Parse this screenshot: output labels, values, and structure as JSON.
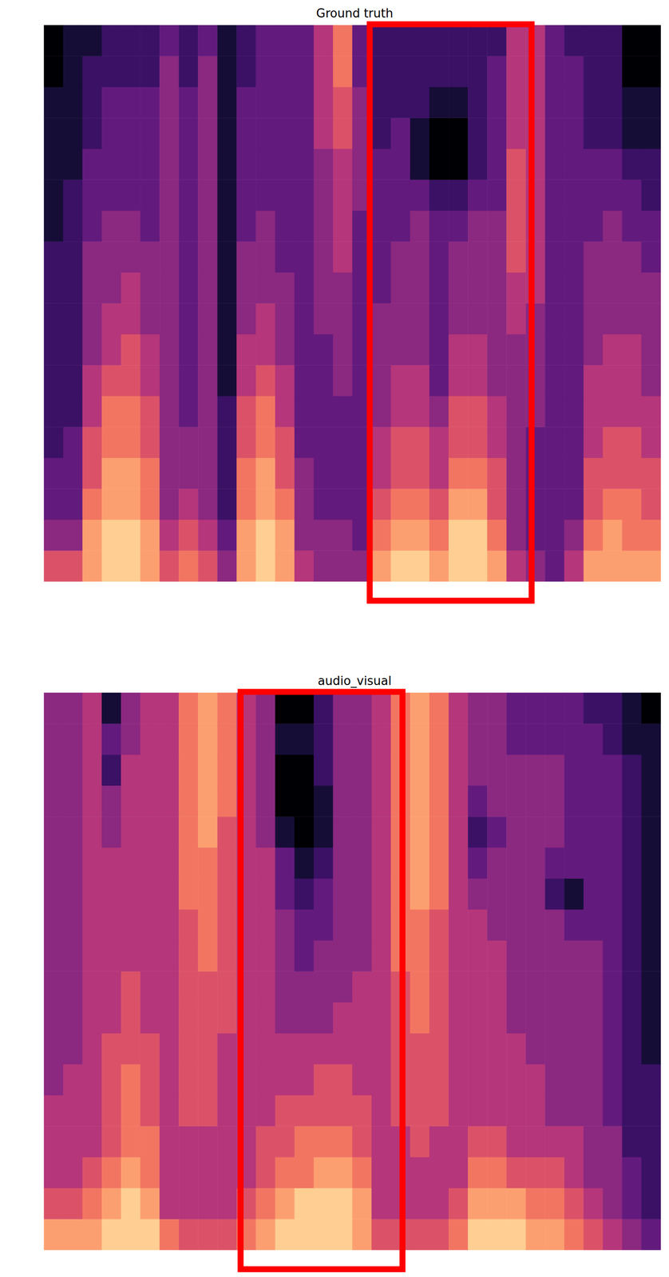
{
  "chart_data": [
    {
      "type": "heatmap",
      "title": "Ground truth",
      "clim": [
        0,
        10
      ],
      "tick_labels": false,
      "highlight": {
        "x": [
          16.9,
          25.3
        ],
        "color": "#ff0000"
      },
      "cells": [
        [
          6,
          4,
          3,
          3,
          2,
          2,
          2,
          2,
          2,
          2,
          2,
          1,
          1,
          1,
          1,
          1,
          0,
          0
        ],
        [
          6,
          4,
          3,
          3,
          3,
          2,
          2,
          2,
          2,
          2,
          2,
          2,
          2,
          1,
          1,
          1,
          1,
          1
        ],
        [
          8,
          8,
          7,
          6,
          6,
          5,
          5,
          4,
          4,
          4,
          4,
          3,
          3,
          3,
          2,
          2,
          2,
          1
        ],
        [
          9,
          9,
          8,
          8,
          7,
          7,
          6,
          5,
          5,
          4,
          4,
          4,
          3,
          3,
          3,
          3,
          2,
          2
        ],
        [
          9,
          9,
          8,
          8,
          7,
          7,
          6,
          6,
          5,
          5,
          4,
          4,
          3,
          3,
          3,
          3,
          2,
          2
        ],
        [
          8,
          8,
          7,
          7,
          6,
          6,
          5,
          5,
          4,
          4,
          4,
          3,
          3,
          3,
          3,
          3,
          2,
          2
        ],
        [
          6,
          5,
          4,
          4,
          4,
          4,
          4,
          4,
          4,
          4,
          4,
          4,
          4,
          4,
          4,
          4,
          4,
          3
        ],
        [
          7,
          6,
          5,
          4,
          4,
          3,
          3,
          3,
          3,
          3,
          3,
          3,
          3,
          3,
          3,
          3,
          2,
          2
        ],
        [
          6,
          5,
          4,
          4,
          4,
          4,
          4,
          4,
          4,
          4,
          4,
          4,
          4,
          4,
          4,
          4,
          4,
          3
        ],
        [
          4,
          3,
          2,
          2,
          2,
          2,
          1,
          1,
          1,
          1,
          1,
          1,
          1,
          1,
          1,
          1,
          1,
          1
        ],
        [
          8,
          8,
          7,
          7,
          6,
          6,
          5,
          5,
          4,
          4,
          4,
          3,
          3,
          3,
          3,
          3,
          2,
          2
        ],
        [
          9,
          9,
          8,
          8,
          7,
          7,
          6,
          5,
          5,
          4,
          4,
          4,
          3,
          3,
          3,
          3,
          3,
          3
        ],
        [
          8,
          8,
          7,
          6,
          6,
          5,
          5,
          4,
          4,
          4,
          3,
          3,
          3,
          3,
          3,
          3,
          3,
          3
        ],
        [
          5,
          4,
          4,
          4,
          3,
          3,
          3,
          3,
          3,
          3,
          3,
          3,
          3,
          3,
          3,
          3,
          3,
          3
        ],
        [
          4,
          4,
          3,
          3,
          3,
          3,
          3,
          3,
          4,
          4,
          4,
          4,
          4,
          4,
          5,
          5,
          5,
          5
        ],
        [
          4,
          4,
          3,
          3,
          3,
          3,
          4,
          4,
          4,
          4,
          5,
          5,
          5,
          5,
          6,
          6,
          7,
          7
        ],
        [
          4,
          3,
          3,
          3,
          3,
          3,
          3,
          3,
          3,
          3,
          3,
          3,
          4,
          4,
          4,
          4,
          3,
          3
        ],
        [
          8,
          7,
          6,
          5,
          5,
          4,
          4,
          4,
          4,
          3,
          3,
          3,
          3,
          3,
          2,
          2,
          2,
          2
        ],
        [
          9,
          8,
          7,
          6,
          6,
          5,
          5,
          4,
          4,
          4,
          4,
          3,
          3,
          3,
          3,
          2,
          2,
          2
        ],
        [
          9,
          8,
          7,
          6,
          6,
          5,
          5,
          4,
          4,
          4,
          4,
          4,
          3,
          1,
          1,
          2,
          2,
          2
        ],
        [
          8,
          7,
          6,
          5,
          5,
          4,
          3,
          3,
          3,
          3,
          3,
          3,
          2,
          0,
          0,
          1,
          2,
          2
        ],
        [
          9,
          9,
          8,
          7,
          6,
          6,
          5,
          5,
          4,
          4,
          4,
          3,
          2,
          0,
          0,
          1,
          2,
          2
        ],
        [
          9,
          9,
          8,
          7,
          6,
          6,
          5,
          5,
          4,
          4,
          4,
          4,
          3,
          2,
          2,
          2,
          2,
          2
        ],
        [
          8,
          7,
          6,
          6,
          5,
          5,
          4,
          4,
          4,
          4,
          4,
          4,
          3,
          3,
          3,
          3,
          3,
          2
        ],
        [
          5,
          4,
          4,
          4,
          4,
          4,
          4,
          4,
          5,
          5,
          6,
          6,
          6,
          6,
          5,
          5,
          5,
          5
        ],
        [
          4,
          3,
          3,
          3,
          3,
          4,
          4,
          4,
          4,
          5,
          5,
          5,
          5,
          5,
          5,
          5,
          5,
          5
        ],
        [
          3,
          3,
          3,
          3,
          3,
          3,
          3,
          3,
          3,
          3,
          3,
          3,
          3,
          3,
          3,
          3,
          3,
          3
        ],
        [
          5,
          4,
          3,
          3,
          3,
          3,
          3,
          3,
          3,
          3,
          3,
          3,
          3,
          3,
          3,
          3,
          3,
          2
        ],
        [
          8,
          7,
          6,
          6,
          5,
          5,
          5,
          4,
          4,
          4,
          4,
          3,
          3,
          3,
          2,
          2,
          2,
          2
        ],
        [
          8,
          8,
          7,
          6,
          6,
          5,
          5,
          5,
          4,
          4,
          4,
          4,
          3,
          3,
          2,
          2,
          2,
          2
        ],
        [
          8,
          7,
          7,
          6,
          6,
          5,
          5,
          5,
          4,
          4,
          4,
          3,
          3,
          2,
          1,
          1,
          0,
          0
        ],
        [
          8,
          7,
          6,
          6,
          5,
          5,
          4,
          4,
          4,
          4,
          3,
          3,
          2,
          2,
          1,
          1,
          0,
          0
        ]
      ]
    },
    {
      "type": "heatmap",
      "title": "audio_visual",
      "clim": [
        0,
        10
      ],
      "tick_labels": false,
      "highlight": {
        "x": [
          10.2,
          18.6
        ],
        "color": "#ff0000"
      },
      "cells": [
        [
          8,
          6,
          5,
          5,
          5,
          4,
          4,
          4,
          4,
          4,
          4,
          4,
          4,
          4,
          4,
          4,
          4,
          4
        ],
        [
          8,
          6,
          5,
          5,
          5,
          5,
          4,
          4,
          4,
          4,
          4,
          4,
          4,
          4,
          4,
          4,
          4,
          4
        ],
        [
          8,
          7,
          6,
          5,
          5,
          5,
          5,
          5,
          5,
          5,
          5,
          5,
          5,
          5,
          5,
          5,
          5,
          5
        ],
        [
          9,
          8,
          7,
          6,
          6,
          6,
          6,
          5,
          5,
          5,
          5,
          5,
          5,
          4,
          4,
          2,
          3,
          1
        ],
        [
          9,
          9,
          8,
          7,
          7,
          7,
          6,
          6,
          6,
          5,
          5,
          5,
          5,
          5,
          5,
          5,
          4,
          4
        ],
        [
          9,
          8,
          7,
          7,
          6,
          6,
          6,
          5,
          5,
          5,
          5,
          5,
          5,
          5,
          5,
          5,
          5,
          5
        ],
        [
          7,
          5,
          5,
          5,
          5,
          5,
          5,
          5,
          5,
          5,
          5,
          5,
          5,
          5,
          5,
          5,
          5,
          5
        ],
        [
          6,
          5,
          5,
          5,
          6,
          6,
          6,
          6,
          6,
          6,
          6,
          7,
          7,
          7,
          7,
          7,
          7,
          7
        ],
        [
          6,
          5,
          5,
          5,
          6,
          6,
          6,
          6,
          6,
          7,
          7,
          7,
          7,
          8,
          8,
          8,
          8,
          8
        ],
        [
          6,
          5,
          5,
          5,
          5,
          5,
          5,
          6,
          6,
          6,
          6,
          6,
          6,
          6,
          7,
          7,
          7,
          7
        ],
        [
          7,
          6,
          5,
          5,
          5,
          5,
          5,
          5,
          5,
          5,
          5,
          5,
          5,
          5,
          5,
          5,
          5,
          5
        ],
        [
          8,
          7,
          6,
          6,
          5,
          5,
          5,
          5,
          5,
          5,
          5,
          5,
          5,
          4,
          4,
          4,
          4,
          4
        ],
        [
          9,
          8,
          7,
          6,
          6,
          5,
          5,
          4,
          4,
          4,
          4,
          3,
          3,
          1,
          0,
          0,
          1,
          0
        ],
        [
          9,
          9,
          7,
          7,
          6,
          5,
          5,
          4,
          4,
          3,
          3,
          2,
          1,
          0,
          0,
          0,
          1,
          0
        ],
        [
          9,
          9,
          8,
          7,
          6,
          6,
          5,
          4,
          4,
          4,
          3,
          3,
          2,
          1,
          1,
          2,
          2,
          2
        ],
        [
          9,
          9,
          8,
          7,
          6,
          6,
          5,
          5,
          4,
          4,
          4,
          4,
          4,
          4,
          4,
          4,
          4,
          4
        ],
        [
          8,
          8,
          7,
          6,
          6,
          5,
          5,
          5,
          5,
          4,
          4,
          4,
          4,
          4,
          4,
          4,
          4,
          4
        ],
        [
          6,
          5,
          5,
          5,
          5,
          5,
          5,
          5,
          5,
          5,
          5,
          5,
          5,
          5,
          5,
          5,
          5,
          5
        ],
        [
          6,
          5,
          5,
          5,
          6,
          6,
          6,
          6,
          6,
          7,
          7,
          7,
          7,
          7,
          7,
          7,
          7,
          7
        ],
        [
          6,
          5,
          5,
          6,
          6,
          6,
          6,
          7,
          7,
          7,
          7,
          8,
          8,
          8,
          8,
          8,
          8,
          8
        ],
        [
          6,
          5,
          5,
          5,
          6,
          6,
          6,
          6,
          6,
          6,
          6,
          7,
          7,
          7,
          7,
          7,
          7,
          7
        ],
        [
          7,
          6,
          5,
          5,
          5,
          5,
          5,
          5,
          5,
          5,
          5,
          5,
          5,
          5,
          5,
          5,
          5,
          5
        ],
        [
          9,
          8,
          7,
          6,
          5,
          5,
          5,
          5,
          5,
          5,
          5,
          4,
          3,
          2,
          3,
          4,
          4,
          4
        ],
        [
          9,
          8,
          7,
          6,
          5,
          5,
          5,
          5,
          5,
          5,
          4,
          4,
          4,
          3,
          4,
          4,
          4,
          4
        ],
        [
          9,
          8,
          6,
          5,
          5,
          5,
          5,
          4,
          4,
          4,
          4,
          4,
          4,
          4,
          4,
          4,
          3,
          3
        ],
        [
          8,
          7,
          6,
          5,
          5,
          5,
          4,
          4,
          4,
          4,
          4,
          4,
          4,
          4,
          4,
          4,
          3,
          3
        ],
        [
          8,
          7,
          6,
          5,
          4,
          4,
          4,
          4,
          4,
          4,
          4,
          2,
          3,
          4,
          4,
          4,
          3,
          3
        ],
        [
          7,
          6,
          5,
          5,
          4,
          4,
          4,
          4,
          4,
          4,
          3,
          1,
          3,
          3,
          3,
          3,
          3,
          3
        ],
        [
          6,
          5,
          4,
          4,
          4,
          4,
          4,
          4,
          4,
          4,
          3,
          3,
          3,
          3,
          3,
          3,
          3,
          2
        ],
        [
          5,
          4,
          4,
          4,
          3,
          3,
          3,
          3,
          3,
          3,
          3,
          3,
          3,
          3,
          3,
          3,
          2,
          2
        ],
        [
          4,
          3,
          3,
          2,
          2,
          2,
          2,
          2,
          2,
          2,
          2,
          2,
          2,
          2,
          2,
          2,
          1,
          1
        ],
        [
          3,
          2,
          2,
          2,
          2,
          2,
          1,
          1,
          1,
          1,
          1,
          1,
          1,
          1,
          1,
          1,
          1,
          0
        ]
      ]
    }
  ]
}
